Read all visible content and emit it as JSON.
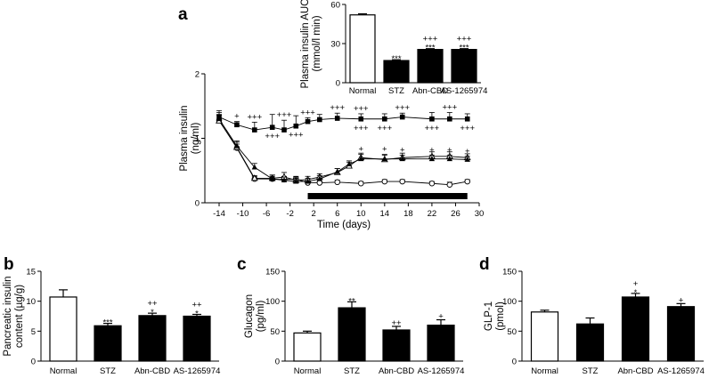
{
  "panel_letters": [
    "a",
    "b",
    "c",
    "d"
  ],
  "colors": {
    "normal_fill": "#ffffff",
    "treated_fill": "#000000",
    "axis": "#000000"
  },
  "chart_data": [
    {
      "id": "a-main",
      "type": "line",
      "panel": "a",
      "xlabel": "Time (days)",
      "ylabel": "Plasma insulin (ng/ml)",
      "ylabel_lines": [
        "Plasma insulin",
        "(ng/ml)"
      ],
      "x_ticks": [
        "-14",
        "-10",
        "-6",
        "-2",
        "2",
        "6",
        "10",
        "14",
        "18",
        "22",
        "26",
        "30"
      ],
      "y_ticks": [
        "0",
        "1",
        "2"
      ],
      "xlim": [
        -14,
        30
      ],
      "ylim": [
        0,
        2
      ],
      "treatment_bar": {
        "start": 1,
        "end": 28
      },
      "series": [
        {
          "name": "Normal",
          "marker": "filled-square",
          "x": [
            -14,
            -11,
            -8,
            -5,
            -3,
            -1,
            1,
            3,
            6,
            10,
            14,
            17,
            22,
            25,
            28
          ],
          "y": [
            1.33,
            1.21,
            1.13,
            1.17,
            1.13,
            1.19,
            1.26,
            1.29,
            1.31,
            1.3,
            1.3,
            1.33,
            1.3,
            1.3,
            1.3
          ],
          "err": [
            0.1,
            0.05,
            0.12,
            0.2,
            0.15,
            0.16,
            0.06,
            0.08,
            0.08,
            0.08,
            0.08,
            0.06,
            0.1,
            0.1,
            0.08
          ],
          "sig_above": [
            "",
            "+",
            "+++",
            "",
            "+++",
            "",
            "+++",
            "",
            "+++",
            "+++",
            "",
            "+++",
            "",
            "+++",
            ""
          ],
          "sig_below": [
            "",
            "",
            "",
            "+++",
            "",
            "+++",
            "",
            "",
            "",
            "+++",
            "+++",
            "",
            "+++",
            "",
            "+++"
          ]
        },
        {
          "name": "STZ",
          "marker": "open-circle",
          "x": [
            -14,
            -11,
            -8,
            -5,
            -3,
            -1,
            1,
            3,
            6,
            10,
            14,
            17,
            22,
            25,
            28
          ],
          "y": [
            1.28,
            0.85,
            0.37,
            0.37,
            0.36,
            0.37,
            0.31,
            0.31,
            0.32,
            0.3,
            0.33,
            0.33,
            0.3,
            0.28,
            0.33
          ],
          "err": [
            0.08,
            0.06,
            0.04,
            0.04,
            0.05,
            0.04,
            0.03,
            0.03,
            0.03,
            0.03,
            0.03,
            0.03,
            0.03,
            0.04,
            0.03
          ]
        },
        {
          "name": "Abn-CBD",
          "marker": "filled-triangle",
          "x": [
            -14,
            -11,
            -8,
            -5,
            -3,
            -1,
            1,
            3,
            6,
            8,
            10,
            14,
            17,
            22,
            25,
            28
          ],
          "y": [
            1.3,
            0.88,
            0.55,
            0.37,
            0.35,
            0.33,
            0.33,
            0.37,
            0.48,
            0.6,
            0.68,
            0.68,
            0.68,
            0.68,
            0.68,
            0.67
          ],
          "err": [
            0.1,
            0.08,
            0.06,
            0.06,
            0.05,
            0.05,
            0.05,
            0.05,
            0.05,
            0.05,
            0.07,
            0.07,
            0.06,
            0.06,
            0.06,
            0.05
          ],
          "sig_above": [
            "",
            "",
            "",
            "",
            "",
            "",
            "",
            "",
            "",
            "",
            "+",
            "+",
            "+",
            "+",
            "+",
            "+"
          ]
        },
        {
          "name": "AS-1265974",
          "marker": "open-triangle",
          "x": [
            -14,
            -11,
            -8,
            -5,
            -3,
            -1,
            1,
            3,
            6,
            8,
            10,
            14,
            17,
            22,
            25,
            28
          ],
          "y": [
            1.27,
            0.86,
            0.38,
            0.38,
            0.4,
            0.35,
            0.36,
            0.4,
            0.47,
            0.57,
            0.7,
            0.67,
            0.7,
            0.72,
            0.72,
            0.7
          ],
          "err": [
            0.1,
            0.08,
            0.04,
            0.05,
            0.07,
            0.05,
            0.05,
            0.05,
            0.06,
            0.06,
            0.07,
            0.07,
            0.07,
            0.07,
            0.07,
            0.06
          ]
        }
      ]
    },
    {
      "id": "a-inset",
      "type": "bar",
      "panel": "a",
      "title": "",
      "ylabel": "Plasma insulin AUC (mmol/l min)",
      "ylabel_lines": [
        "Plasma insulin AUC",
        "(mmol/l min)"
      ],
      "categories": [
        "Normal",
        "STZ",
        "Abn-CBD",
        "AS-1265974"
      ],
      "values": [
        52,
        17,
        25.5,
        25.5
      ],
      "errors": [
        0.8,
        0.6,
        0.6,
        0.6
      ],
      "sig_star": [
        "",
        "***",
        "***",
        "***"
      ],
      "sig_plus": [
        "",
        "",
        "+++",
        "+++"
      ],
      "y_ticks": [
        "0",
        "30",
        "60"
      ],
      "ylim": [
        0,
        60
      ]
    },
    {
      "id": "b",
      "type": "bar",
      "panel": "b",
      "ylabel": "Pancreatic insulin content (µg/g)",
      "ylabel_lines": [
        "Pancreatic insulin",
        "content (µg/g)"
      ],
      "categories": [
        "Normal",
        "STZ",
        "Abn-CBD",
        "AS-1265974"
      ],
      "values": [
        10.7,
        5.9,
        7.6,
        7.5
      ],
      "errors": [
        1.2,
        0.4,
        0.4,
        0.3
      ],
      "sig_star": [
        "",
        "***",
        "*",
        "*"
      ],
      "sig_plus": [
        "",
        "",
        "++",
        "++"
      ],
      "y_ticks": [
        "0",
        "5",
        "10",
        "15"
      ],
      "ylim": [
        0,
        15
      ]
    },
    {
      "id": "c",
      "type": "bar",
      "panel": "c",
      "ylabel": "Glucagon (pg/ml)",
      "ylabel_lines": [
        "Glucagon",
        "(pg/ml)"
      ],
      "categories": [
        "Normal",
        "STZ",
        "Abn-CBD",
        "AS-1265974"
      ],
      "values": [
        47,
        89,
        52,
        60
      ],
      "errors": [
        3,
        10,
        6,
        9
      ],
      "sig_star": [
        "",
        "**",
        "",
        ""
      ],
      "sig_plus": [
        "",
        "",
        "++",
        "+"
      ],
      "y_ticks": [
        "0",
        "50",
        "100",
        "150"
      ],
      "ylim": [
        0,
        150
      ]
    },
    {
      "id": "d",
      "type": "bar",
      "panel": "d",
      "ylabel": "GLP-1 (pmol)",
      "ylabel_lines": [
        "GLP-1",
        "(pmol)"
      ],
      "categories": [
        "Normal",
        "STZ",
        "Abn-CBD",
        "AS-1265974"
      ],
      "values": [
        82,
        62,
        107,
        91
      ],
      "errors": [
        3,
        10,
        6,
        5
      ],
      "sig_star": [
        "",
        "",
        "*",
        ""
      ],
      "sig_plus": [
        "",
        "",
        "+",
        "+"
      ],
      "y_ticks": [
        "0",
        "50",
        "100",
        "150"
      ],
      "ylim": [
        0,
        150
      ]
    }
  ]
}
